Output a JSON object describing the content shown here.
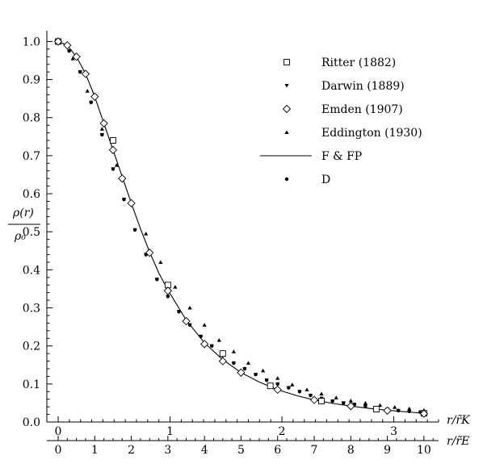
{
  "chart_data": {
    "type": "scatter",
    "title": "",
    "y_axis": {
      "label_numerator": "ρ(r)",
      "label_denominator": "ρ₀",
      "range": [
        0,
        1.02
      ],
      "ticks": [
        0.0,
        0.1,
        0.2,
        0.3,
        0.4,
        0.5,
        0.6,
        0.7,
        0.8,
        0.9,
        1.0
      ],
      "tick_labels": [
        "0.0",
        "0.1",
        "0.2",
        "0.3",
        "0.4",
        "0.5",
        "0.6",
        "0.7",
        "0.8",
        "0.9",
        "1.0"
      ]
    },
    "x_axis_top": {
      "label": "r/r̃K",
      "range": [
        0,
        3.4
      ],
      "ticks": [
        0,
        1,
        2,
        3
      ],
      "tick_labels": [
        "0",
        "1",
        "2",
        "3"
      ]
    },
    "x_axis_bottom": {
      "label": "r/r̃E",
      "range": [
        0,
        10.4
      ],
      "ticks": [
        0,
        1,
        2,
        3,
        4,
        5,
        6,
        7,
        8,
        9,
        10
      ],
      "tick_labels": [
        "0",
        "1",
        "2",
        "3",
        "4",
        "5",
        "6",
        "7",
        "8",
        "9",
        "10"
      ]
    },
    "grid": false,
    "legend_position": "top-right",
    "series": [
      {
        "name": "Ritter  (1882)",
        "marker": "open-square",
        "x": [
          0,
          1.5,
          3.0,
          4.5,
          5.8,
          7.2,
          8.7,
          10.0
        ],
        "y": [
          1.0,
          0.74,
          0.36,
          0.18,
          0.095,
          0.055,
          0.034,
          0.023
        ]
      },
      {
        "name": "Darwin  (1889)",
        "marker": "filled-triangle-down",
        "x": [
          0,
          0.3,
          0.6,
          0.9,
          1.2,
          1.5,
          1.8,
          2.1,
          2.4,
          2.7,
          3.0,
          3.3,
          3.6,
          3.9,
          4.2,
          4.5,
          4.8,
          5.1,
          5.4,
          5.7,
          6.0,
          6.3,
          6.6,
          6.9,
          7.2,
          7.5,
          7.8,
          8.1,
          8.4,
          8.7,
          9.0,
          9.3,
          9.6,
          9.9
        ],
        "y": [
          1.0,
          0.975,
          0.92,
          0.84,
          0.755,
          0.665,
          0.585,
          0.505,
          0.44,
          0.375,
          0.33,
          0.29,
          0.255,
          0.225,
          0.2,
          0.175,
          0.155,
          0.14,
          0.125,
          0.11,
          0.1,
          0.09,
          0.08,
          0.07,
          0.062,
          0.055,
          0.05,
          0.046,
          0.042,
          0.038,
          0.034,
          0.03,
          0.028,
          0.026
        ]
      },
      {
        "name": "Emden  (1907)",
        "marker": "open-diamond",
        "x": [
          0,
          0.25,
          0.5,
          0.75,
          1.0,
          1.25,
          1.5,
          1.75,
          2.0,
          2.5,
          3.0,
          3.5,
          4.0,
          4.5,
          5.0,
          6.0,
          7.0,
          8.0,
          9.0,
          10.0
        ],
        "y": [
          1.0,
          0.99,
          0.96,
          0.915,
          0.855,
          0.785,
          0.715,
          0.64,
          0.575,
          0.445,
          0.345,
          0.265,
          0.205,
          0.16,
          0.13,
          0.085,
          0.058,
          0.042,
          0.03,
          0.022
        ]
      },
      {
        "name": "Eddington  (1930)",
        "marker": "filled-triangle-up",
        "x": [
          0,
          0.4,
          0.8,
          1.2,
          1.6,
          2.0,
          2.4,
          2.8,
          3.2,
          3.6,
          4.0,
          4.4,
          4.8,
          5.2,
          5.6,
          6.0,
          6.4,
          6.8,
          7.2,
          7.6,
          8.0,
          8.4,
          8.8,
          9.2,
          9.6,
          10.0
        ],
        "y": [
          1.0,
          0.955,
          0.87,
          0.77,
          0.675,
          0.58,
          0.495,
          0.42,
          0.355,
          0.3,
          0.255,
          0.215,
          0.185,
          0.155,
          0.135,
          0.115,
          0.098,
          0.085,
          0.074,
          0.064,
          0.056,
          0.05,
          0.044,
          0.039,
          0.035,
          0.031
        ]
      },
      {
        "name": "F & FP",
        "marker": "line",
        "x": [
          0,
          0.25,
          0.5,
          0.75,
          1.0,
          1.25,
          1.5,
          1.75,
          2.0,
          2.25,
          2.5,
          2.75,
          3.0,
          3.5,
          4.0,
          4.5,
          5.0,
          5.5,
          6.0,
          6.5,
          7.0,
          7.5,
          8.0,
          8.5,
          9.0,
          9.5,
          10.0
        ],
        "y": [
          1.0,
          0.99,
          0.96,
          0.915,
          0.855,
          0.785,
          0.715,
          0.645,
          0.575,
          0.508,
          0.447,
          0.392,
          0.347,
          0.268,
          0.208,
          0.164,
          0.13,
          0.105,
          0.085,
          0.07,
          0.058,
          0.049,
          0.042,
          0.036,
          0.031,
          0.027,
          0.023
        ]
      },
      {
        "name": "D",
        "marker": "filled-circle",
        "x": [
          0,
          0.3,
          0.6,
          0.9,
          1.2,
          1.5,
          1.8,
          2.1,
          2.4,
          2.7,
          3.0,
          3.3,
          3.6,
          3.9,
          4.2,
          4.5,
          4.8,
          5.1,
          5.4,
          5.7,
          6.0,
          6.3,
          6.6,
          6.9,
          7.2,
          7.5,
          7.8,
          8.1,
          8.4,
          8.7,
          9.0,
          9.3,
          9.6,
          9.9
        ],
        "y": [
          1.0,
          0.975,
          0.92,
          0.84,
          0.755,
          0.665,
          0.585,
          0.505,
          0.44,
          0.375,
          0.33,
          0.29,
          0.255,
          0.225,
          0.2,
          0.175,
          0.155,
          0.14,
          0.125,
          0.11,
          0.1,
          0.09,
          0.08,
          0.07,
          0.062,
          0.055,
          0.05,
          0.046,
          0.042,
          0.038,
          0.034,
          0.03,
          0.028,
          0.026
        ]
      }
    ]
  }
}
